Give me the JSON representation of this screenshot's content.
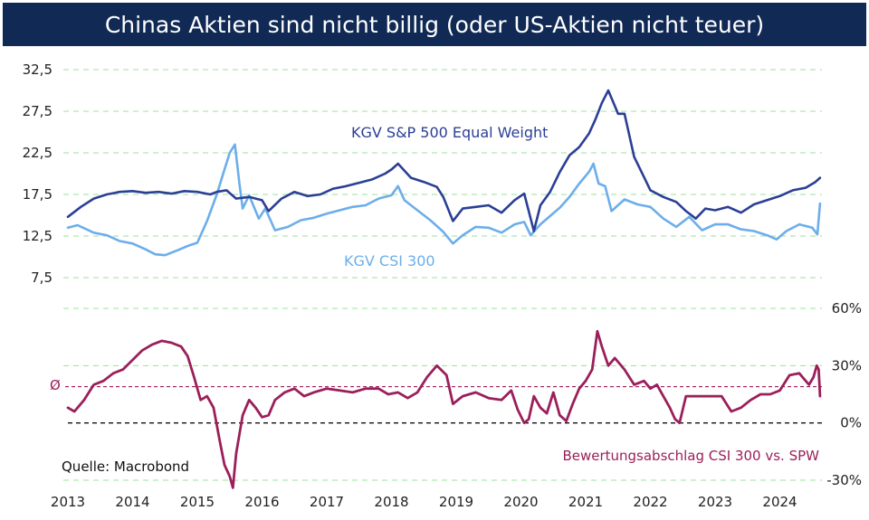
{
  "title": "Chinas Aktien sind nicht billig (oder US-Aktien nicht teuer)",
  "source": "Quelle: Macrobond",
  "colors": {
    "title_bg": "#112a55",
    "spx": "#2b3f95",
    "csi": "#6caeea",
    "discount": "#9b1f5a",
    "grid": "#9be09b",
    "mean_line": "#9b1f5a",
    "zero_line": "#111111"
  },
  "chart_data": [
    {
      "type": "line",
      "x_ticks": [
        "2013",
        "2014",
        "2015",
        "2016",
        "2017",
        "2018",
        "2019",
        "2020",
        "2021",
        "2022",
        "2023",
        "2024"
      ],
      "y_ticks": [
        "32,5",
        "27,5",
        "22,5",
        "17,5",
        "12,5",
        "7,5"
      ],
      "ylim": [
        7.5,
        32.5
      ],
      "xlim": [
        2013.0,
        2024.65
      ],
      "grid": true,
      "series": [
        {
          "name": "KGV S&P 500 Equal Weight",
          "color": "#2b3f95",
          "x": [
            2013.0,
            2013.2,
            2013.4,
            2013.6,
            2013.8,
            2014.0,
            2014.2,
            2014.4,
            2014.6,
            2014.8,
            2015.0,
            2015.2,
            2015.3,
            2015.45,
            2015.6,
            2015.8,
            2016.0,
            2016.1,
            2016.3,
            2016.5,
            2016.7,
            2016.9,
            2017.1,
            2017.3,
            2017.5,
            2017.7,
            2017.9,
            2018.0,
            2018.1,
            2018.3,
            2018.5,
            2018.7,
            2018.8,
            2018.95,
            2019.1,
            2019.3,
            2019.5,
            2019.7,
            2019.9,
            2020.05,
            2020.2,
            2020.3,
            2020.45,
            2020.6,
            2020.75,
            2020.9,
            2021.05,
            2021.15,
            2021.25,
            2021.35,
            2021.5,
            2021.6,
            2021.75,
            2021.9,
            2022.0,
            2022.2,
            2022.4,
            2022.55,
            2022.7,
            2022.85,
            2023.0,
            2023.2,
            2023.4,
            2023.6,
            2023.8,
            2024.0,
            2024.2,
            2024.4,
            2024.55,
            2024.62
          ],
          "values": [
            14.8,
            16.0,
            17.0,
            17.5,
            17.8,
            17.9,
            17.7,
            17.8,
            17.6,
            17.9,
            17.8,
            17.5,
            17.8,
            18.0,
            17.0,
            17.2,
            16.8,
            15.5,
            17.0,
            17.8,
            17.3,
            17.5,
            18.2,
            18.5,
            18.9,
            19.3,
            20.0,
            20.5,
            21.2,
            19.5,
            19.0,
            18.4,
            17.2,
            14.3,
            15.8,
            16.0,
            16.2,
            15.3,
            16.8,
            17.6,
            13.1,
            16.2,
            17.8,
            20.2,
            22.2,
            23.2,
            24.8,
            26.5,
            28.5,
            30.0,
            27.2,
            27.2,
            22.0,
            19.6,
            18.0,
            17.2,
            16.6,
            15.5,
            14.6,
            15.8,
            15.6,
            16.0,
            15.3,
            16.3,
            16.8,
            17.3,
            18.0,
            18.3,
            19.0,
            19.5
          ],
          "label": "KGV S&P 500 Equal Weight"
        },
        {
          "name": "KGV CSI 300",
          "color": "#6caeea",
          "x": [
            2013.0,
            2013.15,
            2013.4,
            2013.6,
            2013.8,
            2014.0,
            2014.2,
            2014.35,
            2014.5,
            2014.7,
            2014.85,
            2015.0,
            2015.15,
            2015.3,
            2015.42,
            2015.5,
            2015.58,
            2015.65,
            2015.7,
            2015.8,
            2015.95,
            2016.05,
            2016.2,
            2016.4,
            2016.6,
            2016.8,
            2017.0,
            2017.2,
            2017.4,
            2017.6,
            2017.8,
            2018.0,
            2018.1,
            2018.2,
            2018.4,
            2018.6,
            2018.8,
            2018.95,
            2019.1,
            2019.3,
            2019.5,
            2019.7,
            2019.9,
            2020.05,
            2020.15,
            2020.3,
            2020.45,
            2020.6,
            2020.75,
            2020.9,
            2021.05,
            2021.12,
            2021.2,
            2021.3,
            2021.4,
            2021.6,
            2021.8,
            2022.0,
            2022.2,
            2022.4,
            2022.6,
            2022.8,
            2023.0,
            2023.2,
            2023.4,
            2023.6,
            2023.8,
            2023.95,
            2024.1,
            2024.3,
            2024.5,
            2024.58,
            2024.62
          ],
          "values": [
            13.5,
            13.8,
            12.9,
            12.6,
            11.9,
            11.6,
            10.9,
            10.3,
            10.2,
            10.8,
            11.3,
            11.7,
            14.3,
            17.5,
            20.5,
            22.5,
            23.5,
            18.8,
            15.8,
            17.4,
            14.6,
            15.8,
            13.2,
            13.6,
            14.4,
            14.7,
            15.2,
            15.6,
            16.0,
            16.2,
            17.0,
            17.4,
            18.5,
            16.8,
            15.6,
            14.4,
            13.0,
            11.6,
            12.6,
            13.6,
            13.5,
            12.9,
            13.9,
            14.2,
            12.6,
            13.9,
            14.9,
            15.9,
            17.2,
            18.8,
            20.2,
            21.2,
            18.8,
            18.5,
            15.5,
            16.9,
            16.3,
            16.0,
            14.6,
            13.6,
            14.8,
            13.2,
            13.9,
            13.9,
            13.3,
            13.1,
            12.6,
            12.1,
            13.1,
            13.9,
            13.5,
            12.7,
            16.4
          ],
          "label": "KGV CSI 300"
        }
      ]
    },
    {
      "type": "line",
      "y_ticks": [
        "60%",
        "30%",
        "0%",
        "-30%"
      ],
      "ylim": [
        -30,
        60
      ],
      "xlim": [
        2013.0,
        2024.65
      ],
      "grid": true,
      "mean_label": "Ø",
      "mean_value": 19,
      "series": [
        {
          "name": "Bewertungsabschlag CSI 300 vs. SPW",
          "color": "#9b1f5a",
          "x": [
            2013.0,
            2013.1,
            2013.25,
            2013.4,
            2013.55,
            2013.7,
            2013.85,
            2014.0,
            2014.15,
            2014.3,
            2014.45,
            2014.6,
            2014.75,
            2014.85,
            2014.95,
            2015.05,
            2015.15,
            2015.25,
            2015.35,
            2015.42,
            2015.5,
            2015.55,
            2015.6,
            2015.7,
            2015.8,
            2015.9,
            2016.0,
            2016.1,
            2016.2,
            2016.35,
            2016.5,
            2016.65,
            2016.8,
            2017.0,
            2017.2,
            2017.4,
            2017.6,
            2017.8,
            2017.95,
            2018.1,
            2018.25,
            2018.4,
            2018.55,
            2018.7,
            2018.85,
            2018.95,
            2019.1,
            2019.3,
            2019.5,
            2019.7,
            2019.85,
            2019.95,
            2020.05,
            2020.12,
            2020.2,
            2020.3,
            2020.4,
            2020.5,
            2020.6,
            2020.7,
            2020.8,
            2020.9,
            2021.0,
            2021.1,
            2021.18,
            2021.25,
            2021.35,
            2021.45,
            2021.6,
            2021.75,
            2021.9,
            2022.0,
            2022.1,
            2022.2,
            2022.3,
            2022.38,
            2022.45,
            2022.55,
            2022.65,
            2022.8,
            2022.95,
            2023.1,
            2023.25,
            2023.4,
            2023.55,
            2023.7,
            2023.85,
            2024.0,
            2024.15,
            2024.3,
            2024.45,
            2024.52,
            2024.57,
            2024.6,
            2024.62
          ],
          "values": [
            8,
            6,
            12,
            20,
            22,
            26,
            28,
            33,
            38,
            41,
            43,
            42,
            40,
            35,
            24,
            12,
            14,
            8,
            -10,
            -22,
            -28,
            -34,
            -16,
            4,
            12,
            8,
            3,
            4,
            12,
            16,
            18,
            14,
            16,
            18,
            17,
            16,
            18,
            18,
            15,
            16,
            13,
            16,
            24,
            30,
            25,
            10,
            14,
            16,
            13,
            12,
            17,
            7,
            0,
            2,
            14,
            8,
            5,
            16,
            4,
            1,
            10,
            18,
            22,
            28,
            48,
            40,
            30,
            34,
            28,
            20,
            22,
            18,
            20,
            14,
            8,
            2,
            0,
            14,
            14,
            14,
            14,
            14,
            6,
            8,
            12,
            15,
            15,
            17,
            25,
            26,
            20,
            24,
            30,
            28,
            14
          ]
        }
      ]
    }
  ]
}
